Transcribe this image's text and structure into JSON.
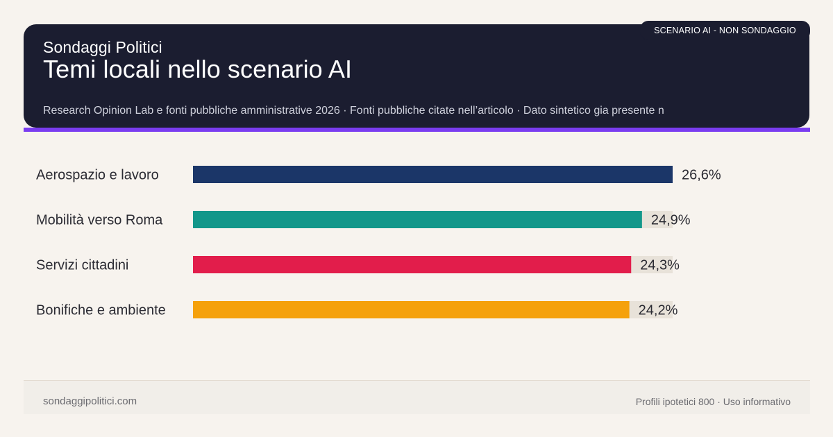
{
  "header": {
    "brand": "Sondaggi Politici",
    "title": "Temi locali nello scenario AI",
    "subtitle": "Research Opinion Lab e fonti pubbliche amministrative 2026 · Fonti pubbliche citate nell’articolo · Dato sintetico gia presente n",
    "badge": "SCENARIO AI - NON SONDAGGIO"
  },
  "chart_data": {
    "type": "bar",
    "orientation": "horizontal",
    "categories": [
      "Aerospazio e lavoro",
      "Mobilità verso Roma",
      "Servizi cittadini",
      "Bonifiche e ambiente"
    ],
    "values": [
      26.6,
      24.9,
      24.3,
      24.2
    ],
    "value_labels": [
      "26,6%",
      "24,9%",
      "24,3%",
      "24,2%"
    ],
    "colors": [
      "#1b3668",
      "#12978a",
      "#e21d4b",
      "#f5a10c"
    ],
    "track_color": "#e8e2d9",
    "xlim": [
      0,
      26.6
    ],
    "grid": false,
    "legend": "none"
  },
  "footer": {
    "left": "sondaggipolitici.com",
    "right": "Profili ipotetici 800 · Uso informativo"
  }
}
